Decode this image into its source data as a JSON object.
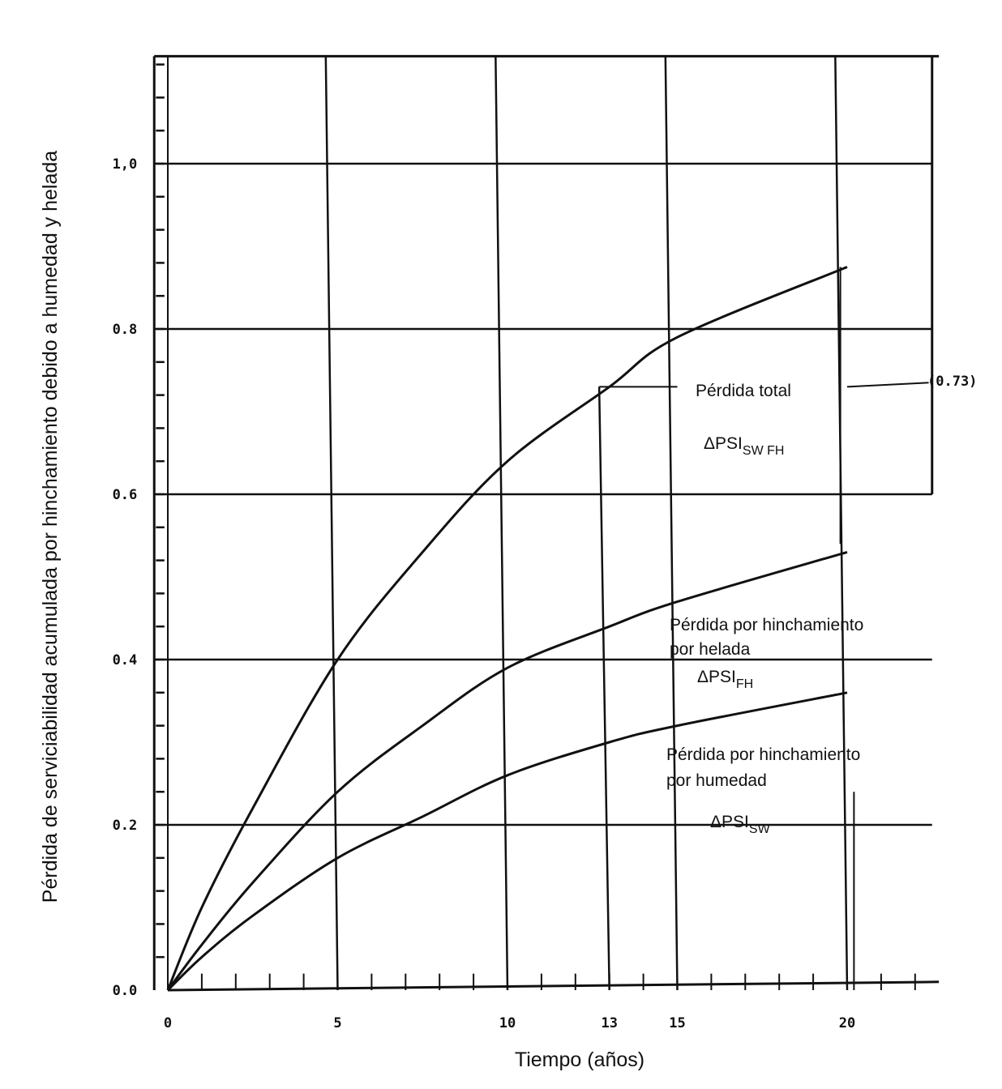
{
  "chart_data": {
    "type": "line",
    "title": "",
    "xlabel": "Tiempo (años)",
    "ylabel": "Pérdida de serviciabilidad acumulada por hinchamiento debido a humedad y helada",
    "xlim": [
      0,
      22.7
    ],
    "ylim": [
      0,
      1.13
    ],
    "grid": true,
    "x_ticks": [
      0,
      5,
      10,
      13,
      15,
      20
    ],
    "x_tick_labels": [
      "0",
      "5",
      "10",
      "13",
      "15",
      "20"
    ],
    "y_ticks": [
      0,
      0.2,
      0.4,
      0.6,
      0.8,
      1.0
    ],
    "y_tick_labels": [
      "0.0",
      "0.2",
      "0.4",
      "0.6",
      "0.8",
      "1,0"
    ],
    "x": [
      0,
      1,
      2.5,
      5,
      7.5,
      10,
      13,
      15,
      20
    ],
    "series": [
      {
        "name": "Pérdida total ΔPSI SW FH",
        "values": [
          0,
          0.1,
          0.22,
          0.4,
          0.53,
          0.64,
          0.73,
          0.79,
          0.875
        ]
      },
      {
        "name": "Pérdida por hinchamiento por helada ΔPSI FH",
        "values": [
          0,
          0.055,
          0.13,
          0.24,
          0.32,
          0.39,
          0.44,
          0.47,
          0.53
        ]
      },
      {
        "name": "Pérdida por hinchamiento por humedad ΔPSI SW",
        "values": [
          0,
          0.04,
          0.09,
          0.16,
          0.21,
          0.26,
          0.3,
          0.32,
          0.36
        ]
      }
    ],
    "annotations": {
      "total_line1": "Pérdida total",
      "total_sym": "ΔPSI",
      "total_sub": "SW FH",
      "total_value": "(0.73)",
      "fh_line1": "Pérdida por hinchamiento",
      "fh_line2": "por helada",
      "fh_sym": "ΔPSI",
      "fh_sub": "FH",
      "sw_line1": "Pérdida por hinchamiento",
      "sw_line2": "por humedad",
      "sw_sym": "ΔPSI",
      "sw_sub": "SW"
    },
    "annotated_value": {
      "x": 13,
      "y": 0.73
    }
  }
}
